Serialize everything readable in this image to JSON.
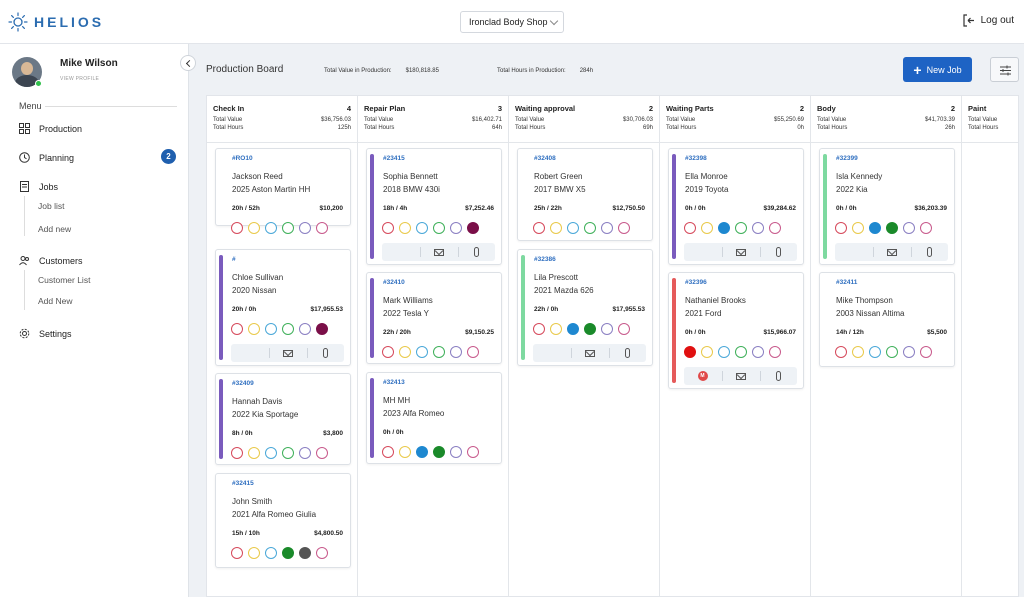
{
  "app": {
    "logo_text": "HELIOS",
    "shop": "Ironclad Body Shop",
    "logout": "Log out"
  },
  "user": {
    "name": "Mike Wilson",
    "view_profile": "VIEW PROFILE"
  },
  "sidebar": {
    "menu_label": "Menu",
    "production": "Production",
    "planning": "Planning",
    "planning_badge": "2",
    "jobs": "Jobs",
    "job_list": "Job list",
    "add_new": "Add new",
    "customers": "Customers",
    "customer_list": "Customer List",
    "add_new_customer": "Add New",
    "settings": "Settings"
  },
  "header": {
    "title": "Production Board",
    "total_value_label": "Total Value in Production:",
    "total_value": "$180,818.85",
    "total_hours_label": "Total Hours in Production:",
    "total_hours": "284h",
    "new_job": "New Job"
  },
  "columns": [
    {
      "name": "Check In",
      "count": "4",
      "value_label": "Total Value",
      "value": "$36,756.03",
      "hours_label": "Total Hours",
      "hours": "125h"
    },
    {
      "name": "Repair Plan",
      "count": "3",
      "value_label": "Total Value",
      "value": "$16,402.71",
      "hours_label": "Total Hours",
      "hours": "64h"
    },
    {
      "name": "Waiting approval",
      "count": "2",
      "value_label": "Total Value",
      "value": "$30,706.03",
      "hours_label": "Total Hours",
      "hours": "69h"
    },
    {
      "name": "Waiting Parts",
      "count": "2",
      "value_label": "Total Value",
      "value": "$55,250.69",
      "hours_label": "Total Hours",
      "hours": "0h"
    },
    {
      "name": "Body",
      "count": "2",
      "value_label": "Total Value",
      "value": "$41,703.39",
      "hours_label": "Total Hours",
      "hours": "26h"
    },
    {
      "name": "Paint",
      "count": "",
      "value_label": "Total Value",
      "value": "",
      "hours_label": "Total Hours",
      "hours": ""
    }
  ],
  "cards": [
    {
      "ro": "#RO10",
      "customer": "Jackson Reed",
      "vehicle": "2025 Aston Martin HH",
      "hours": "20h / 52h",
      "amount": "$10,200"
    },
    {
      "ro": "#",
      "customer": "Chloe Sullivan",
      "vehicle": "2020 Nissan",
      "hours": "20h / 0h",
      "amount": "$17,955.53"
    },
    {
      "ro": "#32409",
      "customer": "Hannah Davis",
      "vehicle": "2022 Kia Sportage",
      "hours": "8h / 0h",
      "amount": "$3,800"
    },
    {
      "ro": "#32415",
      "customer": "John Smith",
      "vehicle": "2021 Alfa Romeo Giulia",
      "hours": "15h / 10h",
      "amount": "$4,800.50"
    },
    {
      "ro": "#23415",
      "customer": "Sophia Bennett",
      "vehicle": "2018 BMW 430i",
      "hours": "18h / 4h",
      "amount": "$7,252.46"
    },
    {
      "ro": "#32410",
      "customer": "Mark Williams",
      "vehicle": "2022 Tesla Y",
      "hours": "22h / 20h",
      "amount": "$9,150.25"
    },
    {
      "ro": "#32413",
      "customer": "MH MH",
      "vehicle": "2023 Alfa Romeo",
      "hours": "0h / 0h",
      "amount": ""
    },
    {
      "ro": "#32408",
      "customer": "Robert Green",
      "vehicle": "2017 BMW X5",
      "hours": "25h / 22h",
      "amount": "$12,750.50"
    },
    {
      "ro": "#32386",
      "customer": "Lila Prescott",
      "vehicle": "2021 Mazda 626",
      "hours": "22h / 0h",
      "amount": "$17,955.53"
    },
    {
      "ro": "#32398",
      "customer": "Ella Monroe",
      "vehicle": "2019 Toyota",
      "hours": "0h / 0h",
      "amount": "$39,284.62"
    },
    {
      "ro": "#32396",
      "customer": "Nathaniel Brooks",
      "vehicle": "2021 Ford",
      "hours": "0h / 0h",
      "amount": "$15,966.07",
      "badge": "M"
    },
    {
      "ro": "#32399",
      "customer": "Isla Kennedy",
      "vehicle": "2022 Kia",
      "hours": "0h / 0h",
      "amount": "$36,203.39"
    },
    {
      "ro": "#32411",
      "customer": "Mike Thompson",
      "vehicle": "2003 Nissan Altima",
      "hours": "14h / 12h",
      "amount": "$5,500"
    }
  ],
  "colors": {
    "accent": "#1e63c4",
    "purple": "#7a5bbd",
    "green": "#7ed9a0",
    "red": "#e55a5a",
    "badge": "#1f5fae"
  }
}
